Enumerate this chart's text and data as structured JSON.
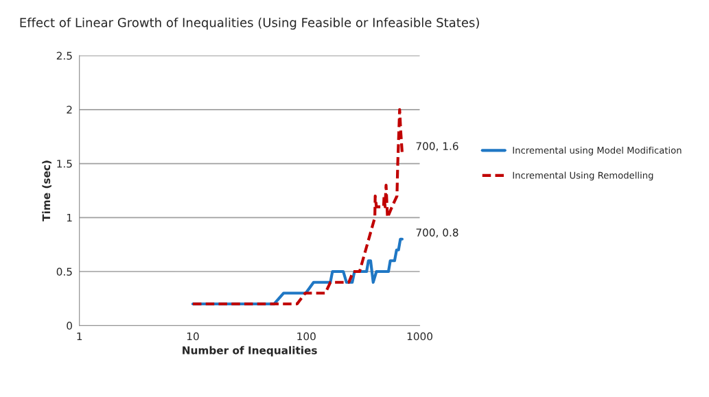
{
  "chart_data": {
    "type": "line",
    "title": "Effect of Linear Growth of Inequalities (Using Feasible or Infeasible States)",
    "xlabel": "Number of Inequalities",
    "ylabel": "Time (sec)",
    "log": "x",
    "xlim": [
      1,
      1000
    ],
    "xticks": [
      1,
      10,
      100,
      1000
    ],
    "ylim": [
      0,
      2.5
    ],
    "yticks": [
      0,
      0.5,
      1,
      1.5,
      2,
      2.5
    ],
    "grid": "y",
    "legend": "right",
    "marker": "none",
    "series": [
      {
        "name": "Incremental using Model Modification",
        "color": "#1f77c4",
        "line_style": "solid",
        "x": [
          10,
          52,
          63,
          99,
          116,
          163,
          170,
          212,
          226,
          254,
          266,
          340,
          353,
          369,
          389,
          415,
          530,
          550,
          600,
          625,
          650,
          675,
          700
        ],
        "values": [
          0.2,
          0.2,
          0.3,
          0.3,
          0.4,
          0.4,
          0.5,
          0.5,
          0.4,
          0.4,
          0.5,
          0.5,
          0.6,
          0.6,
          0.4,
          0.5,
          0.5,
          0.6,
          0.6,
          0.7,
          0.7,
          0.8,
          0.8
        ]
      },
      {
        "name": "Incremental Using Remodelling",
        "color": "#c00000",
        "line_style": "dashed",
        "x": [
          10,
          83,
          98,
          147,
          163,
          237,
          259,
          295,
          402,
          405,
          415,
          480,
          485,
          495,
          505,
          520,
          570,
          630,
          640,
          665,
          680,
          700
        ],
        "values": [
          0.2,
          0.2,
          0.3,
          0.3,
          0.4,
          0.4,
          0.5,
          0.5,
          1.0,
          1.2,
          1.1,
          1.1,
          1.2,
          1.1,
          1.3,
          1.0,
          1.1,
          1.2,
          1.5,
          2.0,
          1.8,
          1.6
        ]
      }
    ],
    "annotations": [
      {
        "text": "700, 1.6",
        "x": 700,
        "y": 1.6
      },
      {
        "text": "700, 0.8",
        "x": 700,
        "y": 0.8
      }
    ]
  }
}
